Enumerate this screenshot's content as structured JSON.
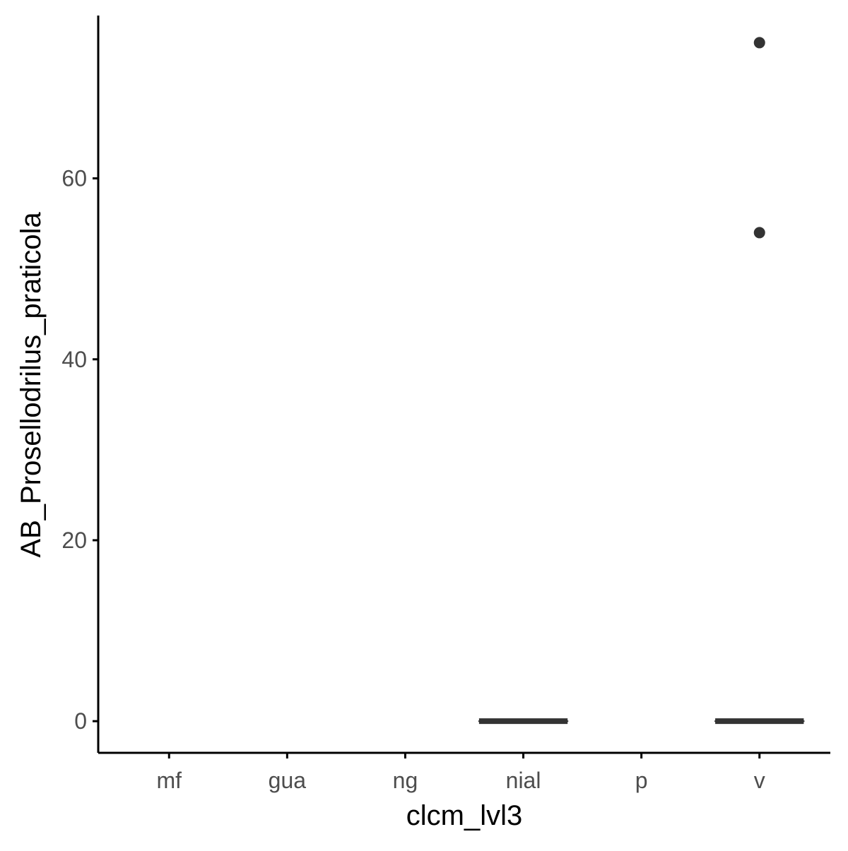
{
  "chart_data": {
    "type": "boxplot",
    "xlabel": "clcm_lvl3",
    "ylabel": "AB_Prosellodrilus_praticola",
    "categories": [
      "mf",
      "gua",
      "ng",
      "nial",
      "p",
      "v"
    ],
    "ylim": [
      -3.5,
      78
    ],
    "yticks": [
      0,
      20,
      40,
      60
    ],
    "ytick_labels": [
      "0",
      "20",
      "40",
      "60"
    ],
    "boxes": [
      {
        "category": "nial",
        "min": 0,
        "q1": 0,
        "median": 0,
        "q3": 0,
        "max": 0,
        "outliers": []
      },
      {
        "category": "v",
        "min": 0,
        "q1": 0,
        "median": 0,
        "q3": 0,
        "max": 0,
        "outliers": [
          54,
          75
        ]
      }
    ],
    "grid": false,
    "legend": "none",
    "colors": {
      "box": "#333333",
      "axis": "#000000",
      "tick_text": "#4d4d4d"
    }
  }
}
